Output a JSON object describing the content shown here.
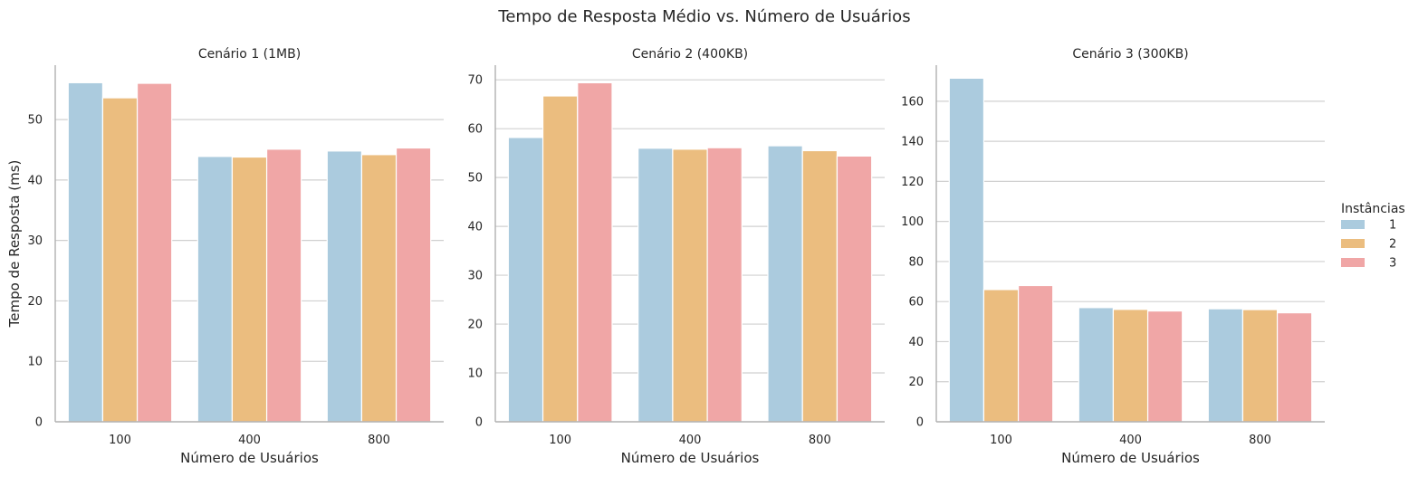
{
  "figure_title": "Tempo de Resposta Médio vs. Número de Usuários",
  "legend": {
    "title": "Instâncias",
    "placement": "right",
    "entries": [
      "1",
      "2",
      "3"
    ]
  },
  "colors": {
    "series": [
      "#abcbde",
      "#ebbd7f",
      "#f0a6a6"
    ],
    "grid": "#d0d0d0",
    "axis": "#b0b0b0",
    "text": "#262626"
  },
  "chart_data": [
    {
      "type": "bar",
      "title": "Cenário 1 (1MB)",
      "xlabel": "Número de Usuários",
      "ylabel": "Tempo de Resposta (ms)",
      "categories": [
        "100",
        "400",
        "800"
      ],
      "ylim": [
        0,
        59
      ],
      "yticks": [
        0,
        10,
        20,
        30,
        40,
        50
      ],
      "grid": true,
      "series": [
        {
          "name": "1",
          "values": [
            56.1,
            43.9,
            44.8
          ]
        },
        {
          "name": "2",
          "values": [
            53.6,
            43.8,
            44.2
          ]
        },
        {
          "name": "3",
          "values": [
            56.0,
            45.1,
            45.3
          ]
        }
      ]
    },
    {
      "type": "bar",
      "title": "Cenário 2 (400KB)",
      "xlabel": "Número de Usuários",
      "ylabel": "",
      "categories": [
        "100",
        "400",
        "800"
      ],
      "ylim": [
        0,
        73
      ],
      "yticks": [
        0,
        10,
        20,
        30,
        40,
        50,
        60,
        70
      ],
      "grid": true,
      "series": [
        {
          "name": "1",
          "values": [
            58.2,
            56.0,
            56.5
          ]
        },
        {
          "name": "2",
          "values": [
            66.7,
            55.8,
            55.5
          ]
        },
        {
          "name": "3",
          "values": [
            69.4,
            56.1,
            54.4
          ]
        }
      ]
    },
    {
      "type": "bar",
      "title": "Cenário 3 (300KB)",
      "xlabel": "Número de Usuários",
      "ylabel": "",
      "categories": [
        "100",
        "400",
        "800"
      ],
      "ylim": [
        0,
        178
      ],
      "yticks": [
        0,
        20,
        40,
        60,
        80,
        100,
        120,
        140,
        160
      ],
      "grid": true,
      "series": [
        {
          "name": "1",
          "values": [
            171.5,
            57.0,
            56.4
          ]
        },
        {
          "name": "2",
          "values": [
            66.0,
            56.1,
            56.0
          ]
        },
        {
          "name": "3",
          "values": [
            68.0,
            55.3,
            54.4
          ]
        }
      ]
    }
  ]
}
